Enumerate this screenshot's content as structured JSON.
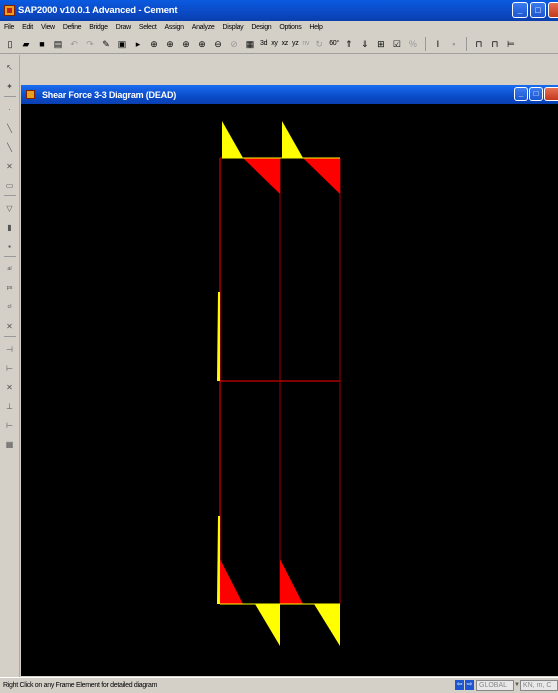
{
  "app": {
    "title": "SAP2000 v10.0.1 Advanced   - Cement"
  },
  "window_buttons": {
    "minimize": "_",
    "maximize": "□",
    "close": "×"
  },
  "menu": {
    "items": [
      "File",
      "Edit",
      "View",
      "Define",
      "Bridge",
      "Draw",
      "Select",
      "Assign",
      "Analyze",
      "Display",
      "Design",
      "Options",
      "Help"
    ]
  },
  "toolbar": {
    "view_3d": "3d",
    "view_xy": "xy",
    "view_xz": "xz",
    "view_yz": "yz",
    "view_nv": "nv",
    "view_perspective": "60°"
  },
  "inner_window": {
    "title": "Shear Force 3-3 Diagram  (DEAD)"
  },
  "statusbar": {
    "message": "Right Click on any Frame Element for detailed diagram",
    "coord_system": "GLOBAL",
    "units": "KN, m, C"
  },
  "colors": {
    "positive": "#ffff00",
    "negative": "#ff0000",
    "frame": "#ff0000",
    "background": "#000000"
  }
}
